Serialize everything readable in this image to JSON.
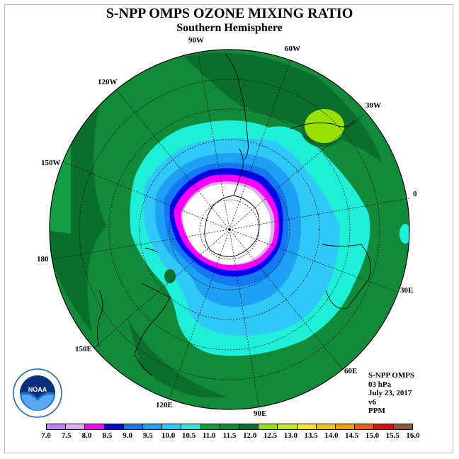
{
  "title": "S-NPP OMPS OZONE MIXING RATIO",
  "subtitle": "Southern Hemisphere",
  "meridian_labels": [
    "90W",
    "60W",
    "30W",
    "0",
    "30E",
    "60E",
    "90E",
    "120E",
    "150E",
    "180",
    "150W",
    "120W"
  ],
  "info": [
    "S-NPP OMPS",
    "03 hPa",
    "July 23, 2017",
    "v6",
    "PPM"
  ],
  "logo_text": "NOAA",
  "colorbar": {
    "ticks": [
      "7.0",
      "7.5",
      "8.0",
      "8.5",
      "9.0",
      "9.5",
      "10.0",
      "10.5",
      "11.0",
      "11.5",
      "12.0",
      "12.5",
      "13.0",
      "13.5",
      "14.0",
      "14.5",
      "15.0",
      "15.5",
      "16.0"
    ],
    "colors": [
      "#b888f0",
      "#ddb0f0",
      "#ff00ff",
      "#0000ee",
      "#1478f0",
      "#1ea0f5",
      "#30c8f8",
      "#1ef0d8",
      "#139940",
      "#118a38",
      "#08702c",
      "#98e000",
      "#c4f000",
      "#f0f000",
      "#f0c800",
      "#f0a000",
      "#f06000",
      "#f00000",
      "#8b5a3c"
    ]
  }
}
